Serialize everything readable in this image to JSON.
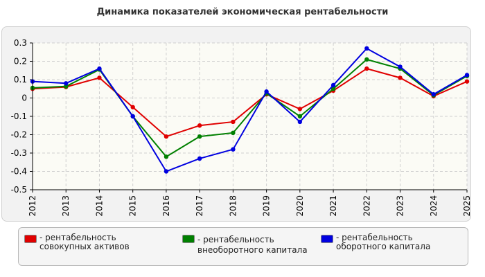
{
  "chart_data": {
    "type": "line",
    "title": "Динамика показателей экономическая рентабельности",
    "x": [
      "2012",
      "2013",
      "2014",
      "2015",
      "2016",
      "2017",
      "2018",
      "2019",
      "2020",
      "2021",
      "2022",
      "2023",
      "2024",
      "2025"
    ],
    "ylim": [
      -0.5,
      0.3
    ],
    "yticks": [
      "0.3",
      "0.2",
      "0.1",
      "0",
      "-0.1",
      "-0.2",
      "-0.3",
      "-0.4",
      "-0.5"
    ],
    "grid": true,
    "legend_position": "bottom",
    "series": [
      {
        "name": "- рентабельность совокупных активов",
        "color": "#e00000",
        "values": [
          0.05,
          0.06,
          0.11,
          -0.05,
          -0.21,
          -0.15,
          -0.13,
          0.02,
          -0.06,
          0.04,
          0.16,
          0.11,
          0.01,
          0.09
        ]
      },
      {
        "name": "- рентабельность внеоборотного капитала",
        "color": "#008000",
        "values": [
          0.055,
          0.063,
          0.155,
          -0.1,
          -0.32,
          -0.21,
          -0.19,
          0.025,
          -0.1,
          0.05,
          0.21,
          0.16,
          0.015,
          0.12
        ]
      },
      {
        "name": "- рентабельность оборотного капитала",
        "color": "#0000e0",
        "values": [
          0.09,
          0.08,
          0.16,
          -0.1,
          -0.4,
          -0.33,
          -0.28,
          0.035,
          -0.13,
          0.07,
          0.27,
          0.17,
          0.02,
          0.125
        ]
      }
    ]
  }
}
